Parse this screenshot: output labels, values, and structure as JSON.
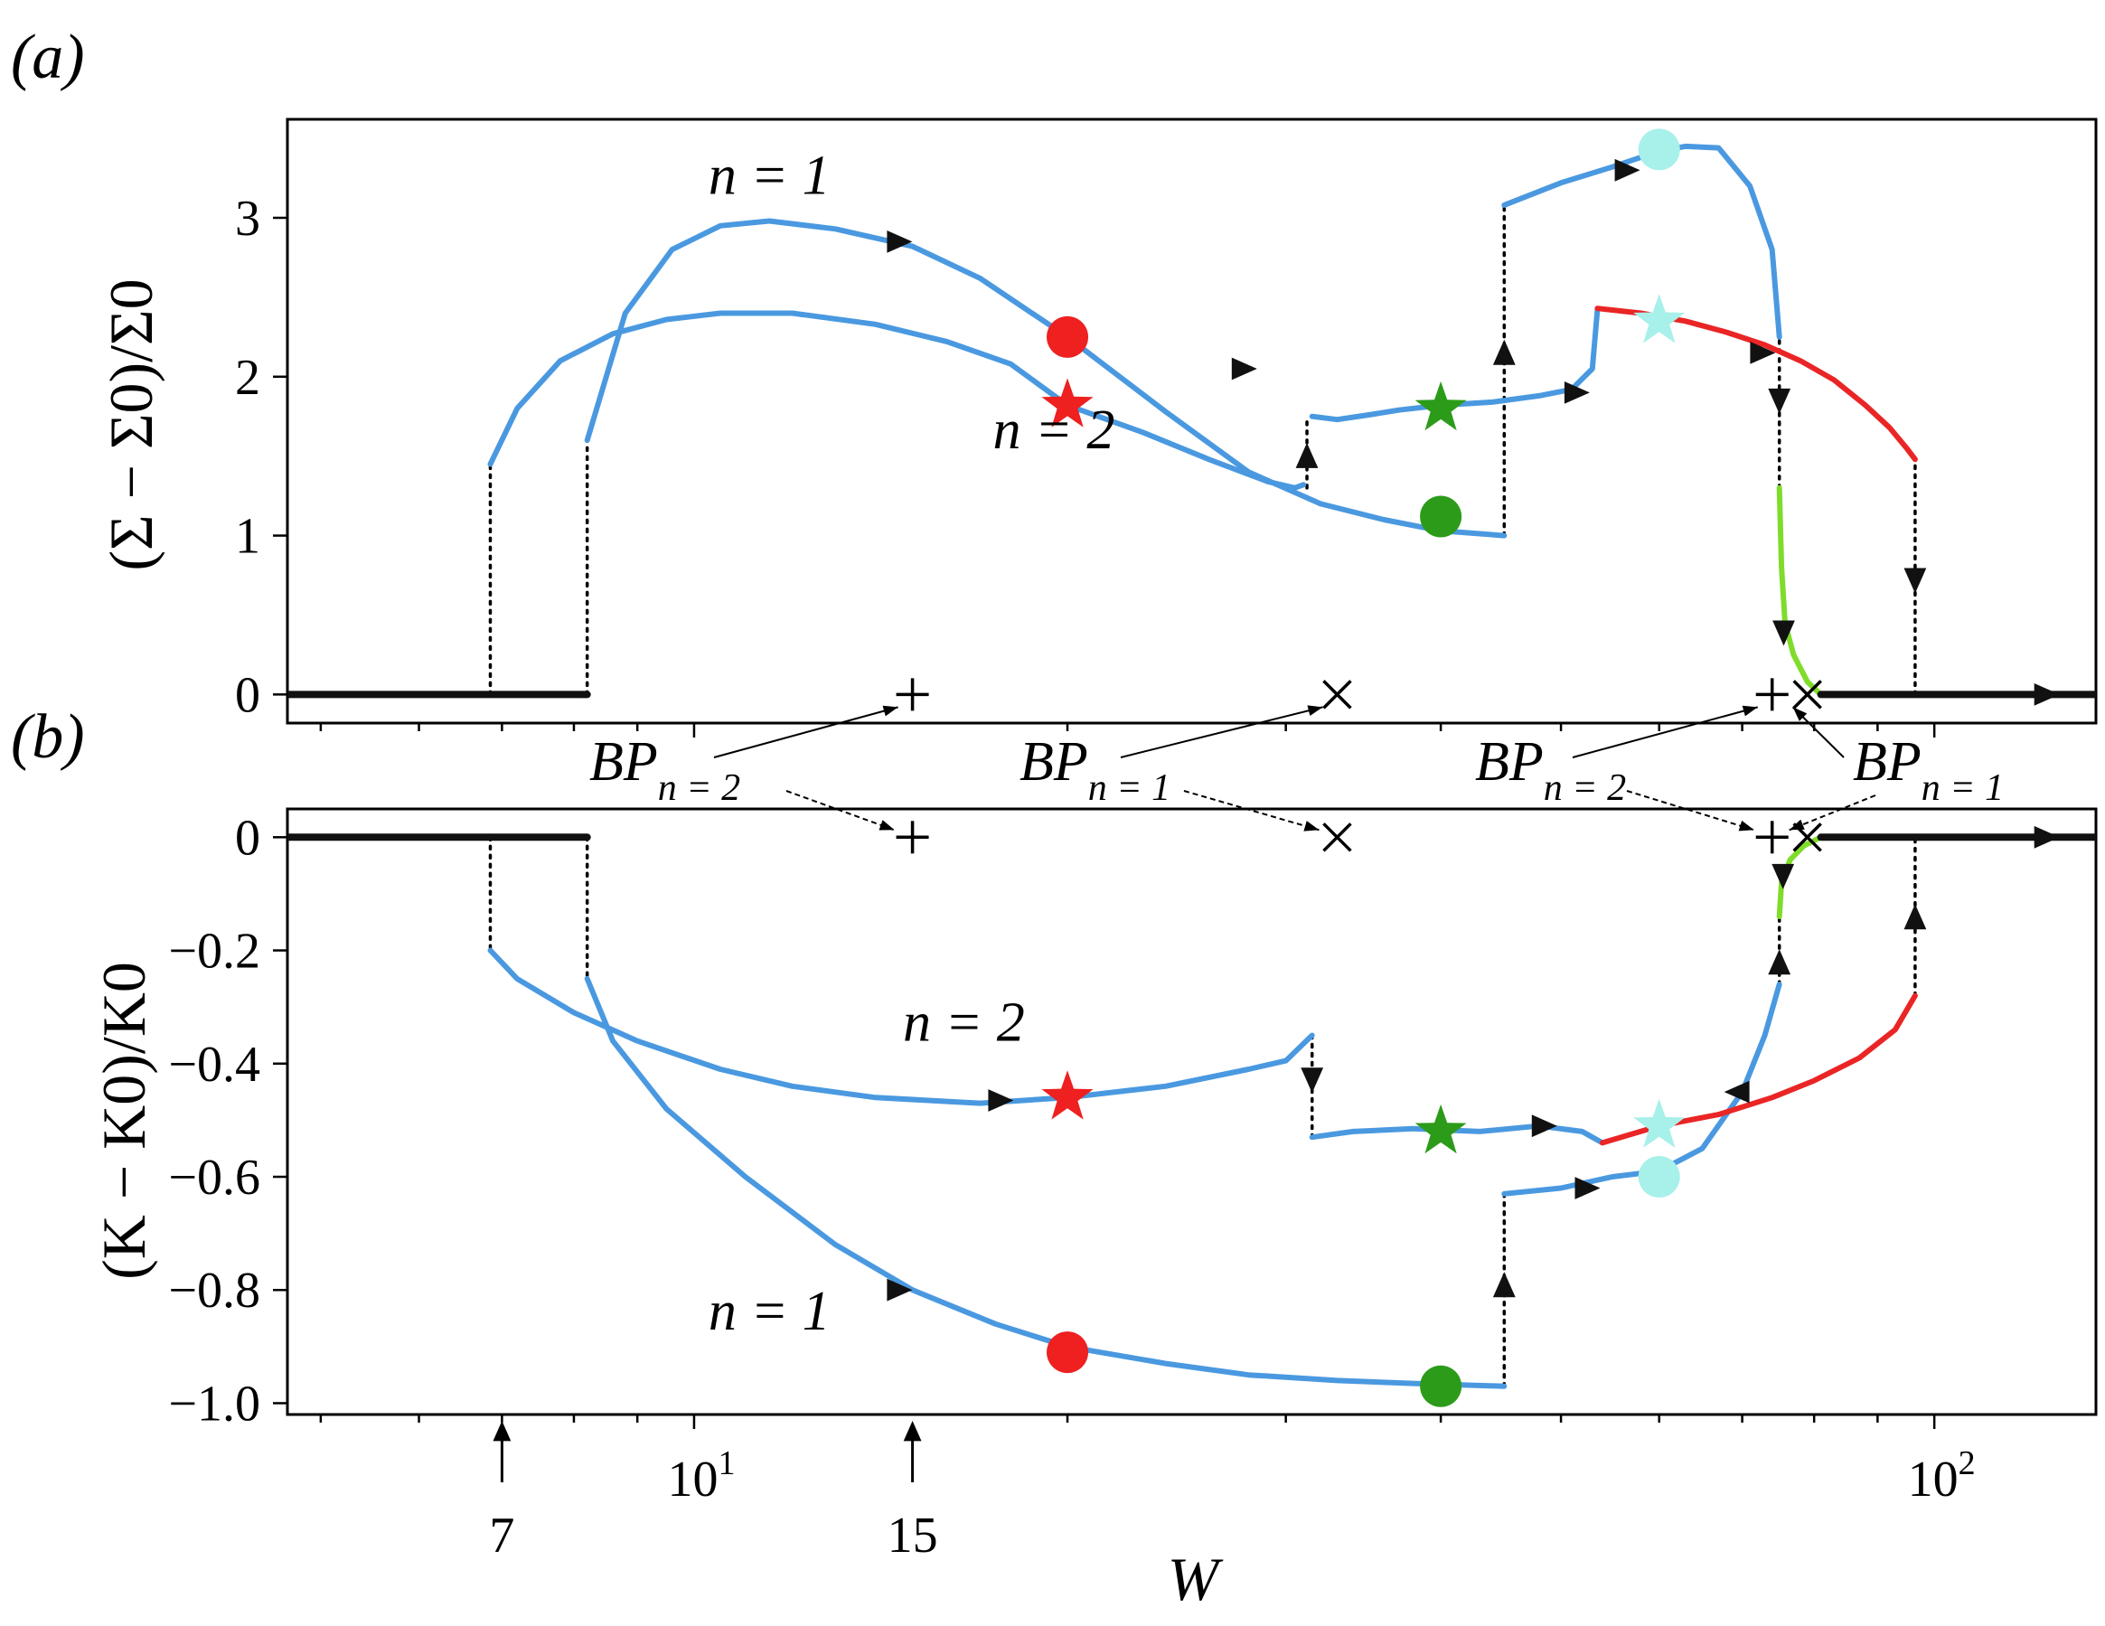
{
  "figure": {
    "panel_labels": [
      "(a)",
      "(b)"
    ],
    "colors": {
      "blue": "#4a99e0",
      "red": "#ea2525",
      "green": "#7fdc2a",
      "black": "#111111",
      "marker_red": "#ee2020",
      "marker_green": "#2c9b1a",
      "marker_cyan": "#a8f0ea"
    },
    "x_axis": {
      "label": "W",
      "scale": "log",
      "tick_labels": [
        {
          "value": 10,
          "base": "10",
          "exp": "1"
        },
        {
          "value": 100,
          "base": "10",
          "exp": "2"
        }
      ],
      "arrow_annotations": [
        {
          "value": 7,
          "text": "7"
        },
        {
          "value": 15,
          "text": "15"
        }
      ]
    },
    "bp_annotations": [
      {
        "main": "BP",
        "sub": "n = 2"
      },
      {
        "main": "BP",
        "sub": "n = 1"
      },
      {
        "main": "BP",
        "sub": "n = 2"
      },
      {
        "main": "BP",
        "sub": "n = 1"
      }
    ]
  },
  "chart_data": [
    {
      "type": "line",
      "panel": "(a)",
      "ylabel": "(Σ − Σ0)/Σ0",
      "xscale": "log",
      "xlim": [
        4.7,
        135
      ],
      "ylim": [
        -0.18,
        3.62
      ],
      "yticks": [
        0,
        1,
        2,
        3
      ],
      "curve_labels": [
        {
          "text": "n = 1",
          "x": 11.5,
          "y": 3.15
        },
        {
          "text": "n = 2",
          "x": 19.5,
          "y": 1.55
        }
      ],
      "series": [
        {
          "name": "n = 1",
          "color": "blue",
          "points": [
            [
              8.2,
              1.6
            ],
            [
              8.8,
              2.4
            ],
            [
              9.6,
              2.8
            ],
            [
              10.5,
              2.95
            ],
            [
              11.5,
              2.98
            ],
            [
              13,
              2.93
            ],
            [
              15,
              2.82
            ],
            [
              17,
              2.62
            ],
            [
              20,
              2.25
            ],
            [
              24,
              1.78
            ],
            [
              28,
              1.4
            ],
            [
              32,
              1.2
            ],
            [
              36,
              1.1
            ],
            [
              40,
              1.03
            ],
            [
              45,
              1.0
            ]
          ]
        },
        {
          "name": "n = 1",
          "color": "blue",
          "points": [
            [
              45,
              3.08
            ],
            [
              50,
              3.22
            ],
            [
              55,
              3.32
            ],
            [
              60,
              3.42
            ],
            [
              63,
              3.45
            ],
            [
              67,
              3.44
            ],
            [
              71,
              3.2
            ],
            [
              74,
              2.8
            ],
            [
              75,
              2.25
            ]
          ]
        },
        {
          "name": "n = 2",
          "color": "blue",
          "points": [
            [
              6.85,
              1.45
            ],
            [
              7.2,
              1.8
            ],
            [
              7.8,
              2.1
            ],
            [
              8.6,
              2.27
            ],
            [
              9.5,
              2.36
            ],
            [
              10.5,
              2.4
            ],
            [
              12,
              2.4
            ],
            [
              14,
              2.33
            ],
            [
              16,
              2.22
            ],
            [
              18,
              2.08
            ],
            [
              20,
              1.82
            ],
            [
              23,
              1.65
            ],
            [
              26,
              1.48
            ],
            [
              29,
              1.34
            ],
            [
              30.5,
              1.3
            ],
            [
              31,
              1.32
            ]
          ]
        },
        {
          "name": "n = 2",
          "color": "blue",
          "points": [
            [
              31.5,
              1.75
            ],
            [
              33,
              1.73
            ],
            [
              35,
              1.76
            ],
            [
              37,
              1.79
            ],
            [
              40,
              1.82
            ],
            [
              44,
              1.84
            ],
            [
              48,
              1.88
            ],
            [
              51,
              1.92
            ],
            [
              53,
              2.05
            ],
            [
              53.5,
              2.42
            ]
          ]
        },
        {
          "name": "n = 2",
          "color": "red",
          "points": [
            [
              53.5,
              2.43
            ],
            [
              58,
              2.4
            ],
            [
              63,
              2.35
            ],
            [
              68,
              2.28
            ],
            [
              73,
              2.2
            ],
            [
              78,
              2.1
            ],
            [
              83,
              1.98
            ],
            [
              88,
              1.82
            ],
            [
              92,
              1.68
            ],
            [
              95,
              1.55
            ],
            [
              96.5,
              1.48
            ]
          ]
        },
        {
          "name": "n = 1",
          "color": "green",
          "points": [
            [
              75,
              1.3
            ],
            [
              75.3,
              0.8
            ],
            [
              75.8,
              0.45
            ],
            [
              77,
              0.25
            ],
            [
              79,
              0.08
            ],
            [
              81,
              0.0
            ]
          ]
        },
        {
          "name": "trivial",
          "color": "black",
          "points": [
            [
              4.7,
              0
            ],
            [
              8.2,
              0
            ]
          ]
        },
        {
          "name": "trivial",
          "color": "black",
          "points": [
            [
              81,
              0
            ],
            [
              135,
              0
            ]
          ]
        }
      ],
      "transitions": [
        {
          "x": 6.85,
          "y": [
            0,
            1.45
          ]
        },
        {
          "x": 8.2,
          "y": [
            0,
            1.6
          ]
        },
        {
          "x": 31.2,
          "y": [
            1.3,
            1.75
          ]
        },
        {
          "x": 45,
          "y": [
            1.0,
            3.08
          ]
        },
        {
          "x": 75,
          "y": [
            1.3,
            2.25
          ]
        },
        {
          "x": 96.5,
          "y": [
            0,
            1.48
          ]
        }
      ],
      "arrows": [
        {
          "x": 14.5,
          "y": 2.85,
          "dir": "right"
        },
        {
          "x": 27.5,
          "y": 2.05,
          "dir": "right"
        },
        {
          "x": 31.2,
          "y": 1.47,
          "dir": "up"
        },
        {
          "x": 45,
          "y": 2.12,
          "dir": "up"
        },
        {
          "x": 51,
          "y": 1.9,
          "dir": "right"
        },
        {
          "x": 56,
          "y": 3.3,
          "dir": "right"
        },
        {
          "x": 72,
          "y": 2.15,
          "dir": "right"
        },
        {
          "x": 75,
          "y": 1.88,
          "dir": "down"
        },
        {
          "x": 75.6,
          "y": 0.42,
          "dir": "down"
        },
        {
          "x": 96.5,
          "y": 0.75,
          "dir": "down"
        },
        {
          "x": 122,
          "y": 0,
          "dir": "right"
        }
      ],
      "markers": [
        {
          "shape": "circle",
          "color": "marker_red",
          "x": 20,
          "y": 2.25
        },
        {
          "shape": "star",
          "color": "marker_red",
          "x": 20,
          "y": 1.82
        },
        {
          "shape": "circle",
          "color": "marker_green",
          "x": 40,
          "y": 1.12
        },
        {
          "shape": "star",
          "color": "marker_green",
          "x": 40,
          "y": 1.8
        },
        {
          "shape": "circle",
          "color": "marker_cyan",
          "x": 60,
          "y": 3.43
        },
        {
          "shape": "star",
          "color": "marker_cyan",
          "x": 60,
          "y": 2.35
        }
      ],
      "bifurcation_points": [
        {
          "symbol": "+",
          "x": 15,
          "y": 0
        },
        {
          "symbol": "×",
          "x": 33,
          "y": 0
        },
        {
          "symbol": "+",
          "x": 74,
          "y": 0
        },
        {
          "symbol": "×",
          "x": 79,
          "y": 0
        }
      ]
    },
    {
      "type": "line",
      "panel": "(b)",
      "ylabel": "(K − K0)/K0",
      "xscale": "log",
      "xlim": [
        4.7,
        135
      ],
      "ylim": [
        -1.02,
        0.05
      ],
      "yticks": [
        0,
        -0.2,
        -0.4,
        -0.6,
        -0.8,
        -1.0
      ],
      "ytick_labels": [
        "0",
        "−0.2",
        "−0.4",
        "−0.6",
        "−0.8",
        "−1.0"
      ],
      "curve_labels": [
        {
          "text": "n = 2",
          "x": 16.5,
          "y": -0.36
        },
        {
          "text": "n = 1",
          "x": 11.5,
          "y": -0.87
        }
      ],
      "series": [
        {
          "name": "n = 1",
          "color": "blue",
          "points": [
            [
              8.2,
              -0.25
            ],
            [
              8.6,
              -0.36
            ],
            [
              9.5,
              -0.48
            ],
            [
              11,
              -0.6
            ],
            [
              13,
              -0.72
            ],
            [
              15,
              -0.8
            ],
            [
              17.5,
              -0.86
            ],
            [
              20,
              -0.9
            ],
            [
              24,
              -0.93
            ],
            [
              28,
              -0.95
            ],
            [
              33,
              -0.96
            ],
            [
              38,
              -0.965
            ],
            [
              45,
              -0.97
            ]
          ]
        },
        {
          "name": "n = 1",
          "color": "blue",
          "points": [
            [
              45,
              -0.63
            ],
            [
              50,
              -0.62
            ],
            [
              55,
              -0.6
            ],
            [
              60,
              -0.59
            ],
            [
              65,
              -0.55
            ],
            [
              70,
              -0.45
            ],
            [
              73,
              -0.35
            ],
            [
              75,
              -0.26
            ]
          ]
        },
        {
          "name": "n = 2",
          "color": "blue",
          "points": [
            [
              6.85,
              -0.2
            ],
            [
              7.2,
              -0.25
            ],
            [
              8,
              -0.31
            ],
            [
              9,
              -0.36
            ],
            [
              10.5,
              -0.41
            ],
            [
              12,
              -0.44
            ],
            [
              14,
              -0.46
            ],
            [
              17,
              -0.47
            ],
            [
              20,
              -0.46
            ],
            [
              24,
              -0.44
            ],
            [
              28,
              -0.41
            ],
            [
              30,
              -0.395
            ],
            [
              31.5,
              -0.35
            ]
          ]
        },
        {
          "name": "n = 2",
          "color": "blue",
          "points": [
            [
              31.5,
              -0.53
            ],
            [
              34,
              -0.52
            ],
            [
              38,
              -0.515
            ],
            [
              43,
              -0.52
            ],
            [
              48,
              -0.51
            ],
            [
              52,
              -0.52
            ],
            [
              54,
              -0.54
            ]
          ]
        },
        {
          "name": "n = 2",
          "color": "red",
          "points": [
            [
              54,
              -0.54
            ],
            [
              60,
              -0.51
            ],
            [
              67,
              -0.49
            ],
            [
              74,
              -0.46
            ],
            [
              80,
              -0.43
            ],
            [
              87,
              -0.39
            ],
            [
              93,
              -0.34
            ],
            [
              96.5,
              -0.28
            ]
          ]
        },
        {
          "name": "n = 1",
          "color": "green",
          "points": [
            [
              75,
              -0.14
            ],
            [
              75.3,
              -0.08
            ],
            [
              76.5,
              -0.04
            ],
            [
              78.5,
              -0.015
            ],
            [
              81,
              0.0
            ]
          ]
        },
        {
          "name": "trivial",
          "color": "black",
          "points": [
            [
              4.7,
              0
            ],
            [
              8.2,
              0
            ]
          ]
        },
        {
          "name": "trivial",
          "color": "black",
          "points": [
            [
              81,
              0
            ],
            [
              135,
              0
            ]
          ]
        }
      ],
      "transitions": [
        {
          "x": 6.85,
          "y": [
            0,
            -0.2
          ]
        },
        {
          "x": 8.2,
          "y": [
            0,
            -0.25
          ]
        },
        {
          "x": 31.5,
          "y": [
            -0.35,
            -0.53
          ]
        },
        {
          "x": 45,
          "y": [
            -0.97,
            -0.63
          ]
        },
        {
          "x": 75,
          "y": [
            -0.26,
            -0.14
          ]
        },
        {
          "x": 96.5,
          "y": [
            -0.28,
            0
          ]
        }
      ],
      "arrows": [
        {
          "x": 14.5,
          "y": -0.8,
          "dir": "right"
        },
        {
          "x": 17.5,
          "y": -0.465,
          "dir": "right"
        },
        {
          "x": 31.5,
          "y": -0.42,
          "dir": "down"
        },
        {
          "x": 45,
          "y": -0.8,
          "dir": "up"
        },
        {
          "x": 48,
          "y": -0.51,
          "dir": "right"
        },
        {
          "x": 52,
          "y": -0.62,
          "dir": "right"
        },
        {
          "x": 70,
          "y": -0.45,
          "dir": "left"
        },
        {
          "x": 75,
          "y": -0.23,
          "dir": "up"
        },
        {
          "x": 75.5,
          "y": -0.06,
          "dir": "down"
        },
        {
          "x": 96.5,
          "y": -0.15,
          "dir": "up"
        },
        {
          "x": 122,
          "y": 0,
          "dir": "right"
        }
      ],
      "markers": [
        {
          "shape": "star",
          "color": "marker_red",
          "x": 20,
          "y": -0.46
        },
        {
          "shape": "circle",
          "color": "marker_red",
          "x": 20,
          "y": -0.91
        },
        {
          "shape": "star",
          "color": "marker_green",
          "x": 40,
          "y": -0.52
        },
        {
          "shape": "circle",
          "color": "marker_green",
          "x": 40,
          "y": -0.97
        },
        {
          "shape": "star",
          "color": "marker_cyan",
          "x": 60,
          "y": -0.51
        },
        {
          "shape": "circle",
          "color": "marker_cyan",
          "x": 60,
          "y": -0.6
        }
      ],
      "bifurcation_points": [
        {
          "symbol": "+",
          "x": 15,
          "y": 0
        },
        {
          "symbol": "×",
          "x": 33,
          "y": 0
        },
        {
          "symbol": "+",
          "x": 74,
          "y": 0
        },
        {
          "symbol": "×",
          "x": 79,
          "y": 0
        }
      ]
    }
  ]
}
